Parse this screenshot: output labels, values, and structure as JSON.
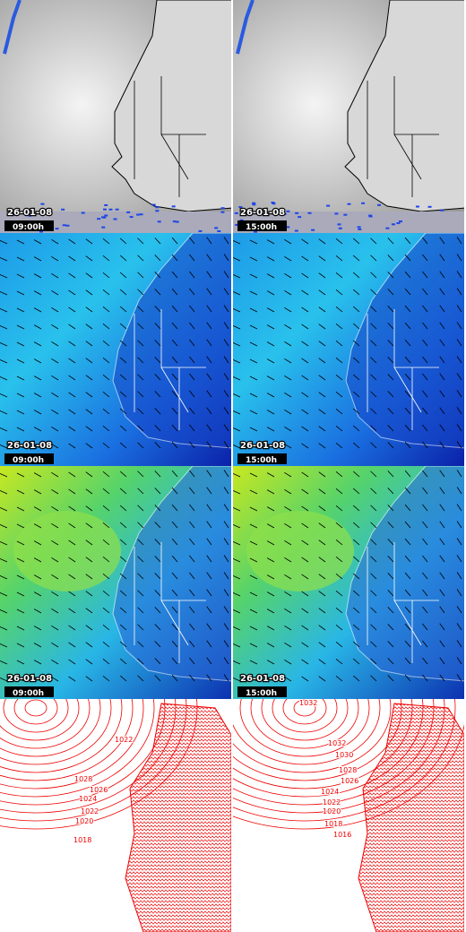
{
  "panels": [
    {
      "date": "26-01-08",
      "time": "09:00h"
    },
    {
      "date": "26-01-08",
      "time": "15:00h"
    },
    {
      "date": "26-01-08",
      "time": "09:00h"
    },
    {
      "date": "26-01-08",
      "time": "15:00h"
    },
    {
      "date": "26-01-08",
      "time": "09:00h"
    },
    {
      "date": "26-01-08",
      "time": "15:00h"
    }
  ],
  "isobars_left": [
    1022,
    1028,
    1026,
    1024,
    1022,
    1020,
    1018
  ],
  "isobars_right": [
    1032,
    1032,
    1030,
    1028,
    1026,
    1024,
    1022,
    1020,
    1018,
    1016
  ]
}
